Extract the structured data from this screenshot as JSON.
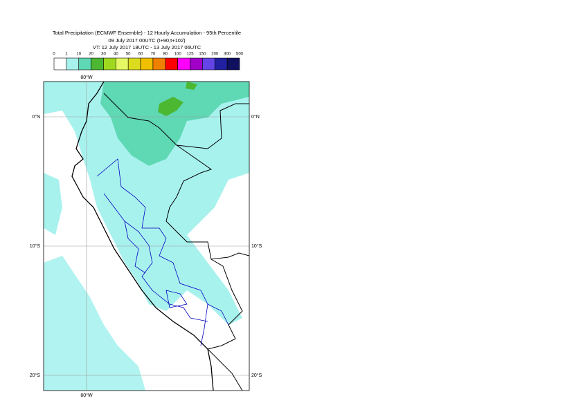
{
  "title": {
    "line1": "Total Precipitation (ECMWF Ensemble) - 12 Hourly Accumulation - 95th Percentile",
    "line2": "09 July 2017 00UTC (t+90,t+102)",
    "line3": "VT: 12 July 2017 18UTC - 13 July 2017 06UTC"
  },
  "legend": {
    "labels": [
      "0",
      "1",
      "10",
      "20",
      "30",
      "40",
      "50",
      "60",
      "70",
      "80",
      "100",
      "125",
      "150",
      "200",
      "300",
      "500"
    ],
    "colors": [
      "#ffffff",
      "#a8f2ee",
      "#5fd8b4",
      "#4cb832",
      "#9fd81e",
      "#e6f864",
      "#dcdc1e",
      "#f0c000",
      "#f08000",
      "#ff0000",
      "#ff00ff",
      "#a000c8",
      "#6444e6",
      "#2020a0",
      "#101060"
    ]
  },
  "map": {
    "lon_labels": [
      "80°W"
    ],
    "lat_labels": [
      "0°N",
      "10°S",
      "20°S"
    ]
  }
}
